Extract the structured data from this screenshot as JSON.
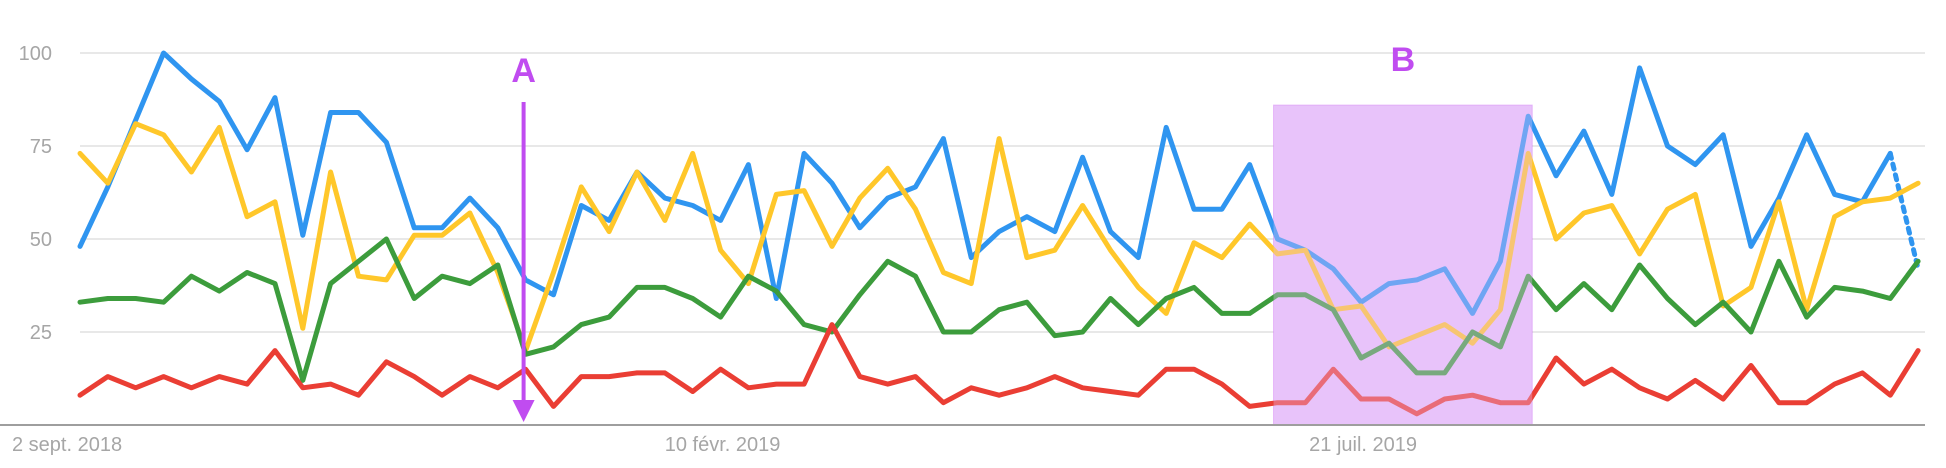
{
  "chart_data": {
    "type": "line",
    "title": "",
    "xlabel": "",
    "ylabel": "",
    "ylim": [
      0,
      100
    ],
    "y_ticks": [
      {
        "value": 25,
        "label": "25"
      },
      {
        "value": 50,
        "label": "50"
      },
      {
        "value": 75,
        "label": "75"
      },
      {
        "value": 100,
        "label": "100"
      }
    ],
    "x_ticks": [
      {
        "index": 0,
        "label": "2 sept. 2018"
      },
      {
        "index": 23,
        "label": "10 févr. 2019"
      },
      {
        "index": 46,
        "label": "21 juil. 2019"
      }
    ],
    "grid": true,
    "legend": "none",
    "colors": {
      "blue": "#2f95f0",
      "yellow": "#ffc72a",
      "green": "#3c9c3c",
      "red": "#ea3e34",
      "grid": "#e0e0e0",
      "axis": "#9e9e9e",
      "annotation": "#c04cf0",
      "highlight_fill": "#e9c4fa"
    },
    "series": [
      {
        "color": "#2f95f0",
        "dashed_last_segment": true,
        "values": [
          48,
          64,
          82,
          100,
          93,
          87,
          74,
          88,
          51,
          84,
          84,
          76,
          53,
          53,
          61,
          53,
          39,
          35,
          59,
          55,
          68,
          61,
          59,
          55,
          70,
          34,
          73,
          65,
          53,
          61,
          64,
          77,
          45,
          52,
          56,
          52,
          72,
          52,
          45,
          80,
          58,
          58,
          70,
          50,
          47,
          42,
          33,
          38,
          39,
          42,
          30,
          44,
          83,
          67,
          79,
          62,
          96,
          75,
          70,
          78,
          48,
          61,
          78,
          62,
          60,
          73,
          42
        ]
      },
      {
        "color": "#ffc72a",
        "dashed_last_segment": false,
        "values": [
          73,
          65,
          81,
          78,
          68,
          80,
          56,
          60,
          26,
          68,
          40,
          39,
          51,
          51,
          57,
          41,
          20,
          41,
          64,
          52,
          68,
          55,
          73,
          47,
          38,
          62,
          63,
          48,
          61,
          69,
          58,
          41,
          38,
          77,
          45,
          47,
          59,
          47,
          37,
          30,
          49,
          45,
          54,
          46,
          47,
          31,
          32,
          21,
          24,
          27,
          22,
          31,
          73,
          50,
          57,
          59,
          46,
          58,
          62,
          32,
          37,
          60,
          31,
          56,
          60,
          61,
          65
        ]
      },
      {
        "color": "#3c9c3c",
        "dashed_last_segment": false,
        "values": [
          33,
          34,
          34,
          33,
          40,
          36,
          41,
          38,
          12,
          38,
          44,
          50,
          34,
          40,
          38,
          43,
          19,
          21,
          27,
          29,
          37,
          37,
          34,
          29,
          40,
          36,
          27,
          25,
          35,
          44,
          40,
          25,
          25,
          31,
          33,
          24,
          25,
          34,
          27,
          34,
          37,
          30,
          30,
          35,
          35,
          31,
          18,
          22,
          14,
          14,
          25,
          21,
          40,
          31,
          38,
          31,
          43,
          34,
          27,
          33,
          25,
          44,
          29,
          37,
          36,
          34,
          44
        ]
      },
      {
        "color": "#ea3e34",
        "dashed_last_segment": false,
        "values": [
          8,
          13,
          10,
          13,
          10,
          13,
          11,
          20,
          10,
          11,
          8,
          17,
          13,
          8,
          13,
          10,
          15,
          5,
          13,
          13,
          14,
          14,
          9,
          15,
          10,
          11,
          11,
          27,
          13,
          11,
          13,
          6,
          10,
          8,
          10,
          13,
          10,
          9,
          8,
          15,
          15,
          11,
          5,
          6,
          6,
          15,
          7,
          7,
          3,
          7,
          8,
          6,
          6,
          18,
          11,
          15,
          10,
          7,
          12,
          7,
          16,
          6,
          6,
          11,
          14,
          8,
          20
        ]
      }
    ],
    "annotations": [
      {
        "label": "A",
        "type": "arrow",
        "index": 16
      },
      {
        "label": "B",
        "type": "range",
        "start_index": 43,
        "end_index": 52,
        "top_value": 86
      }
    ]
  }
}
